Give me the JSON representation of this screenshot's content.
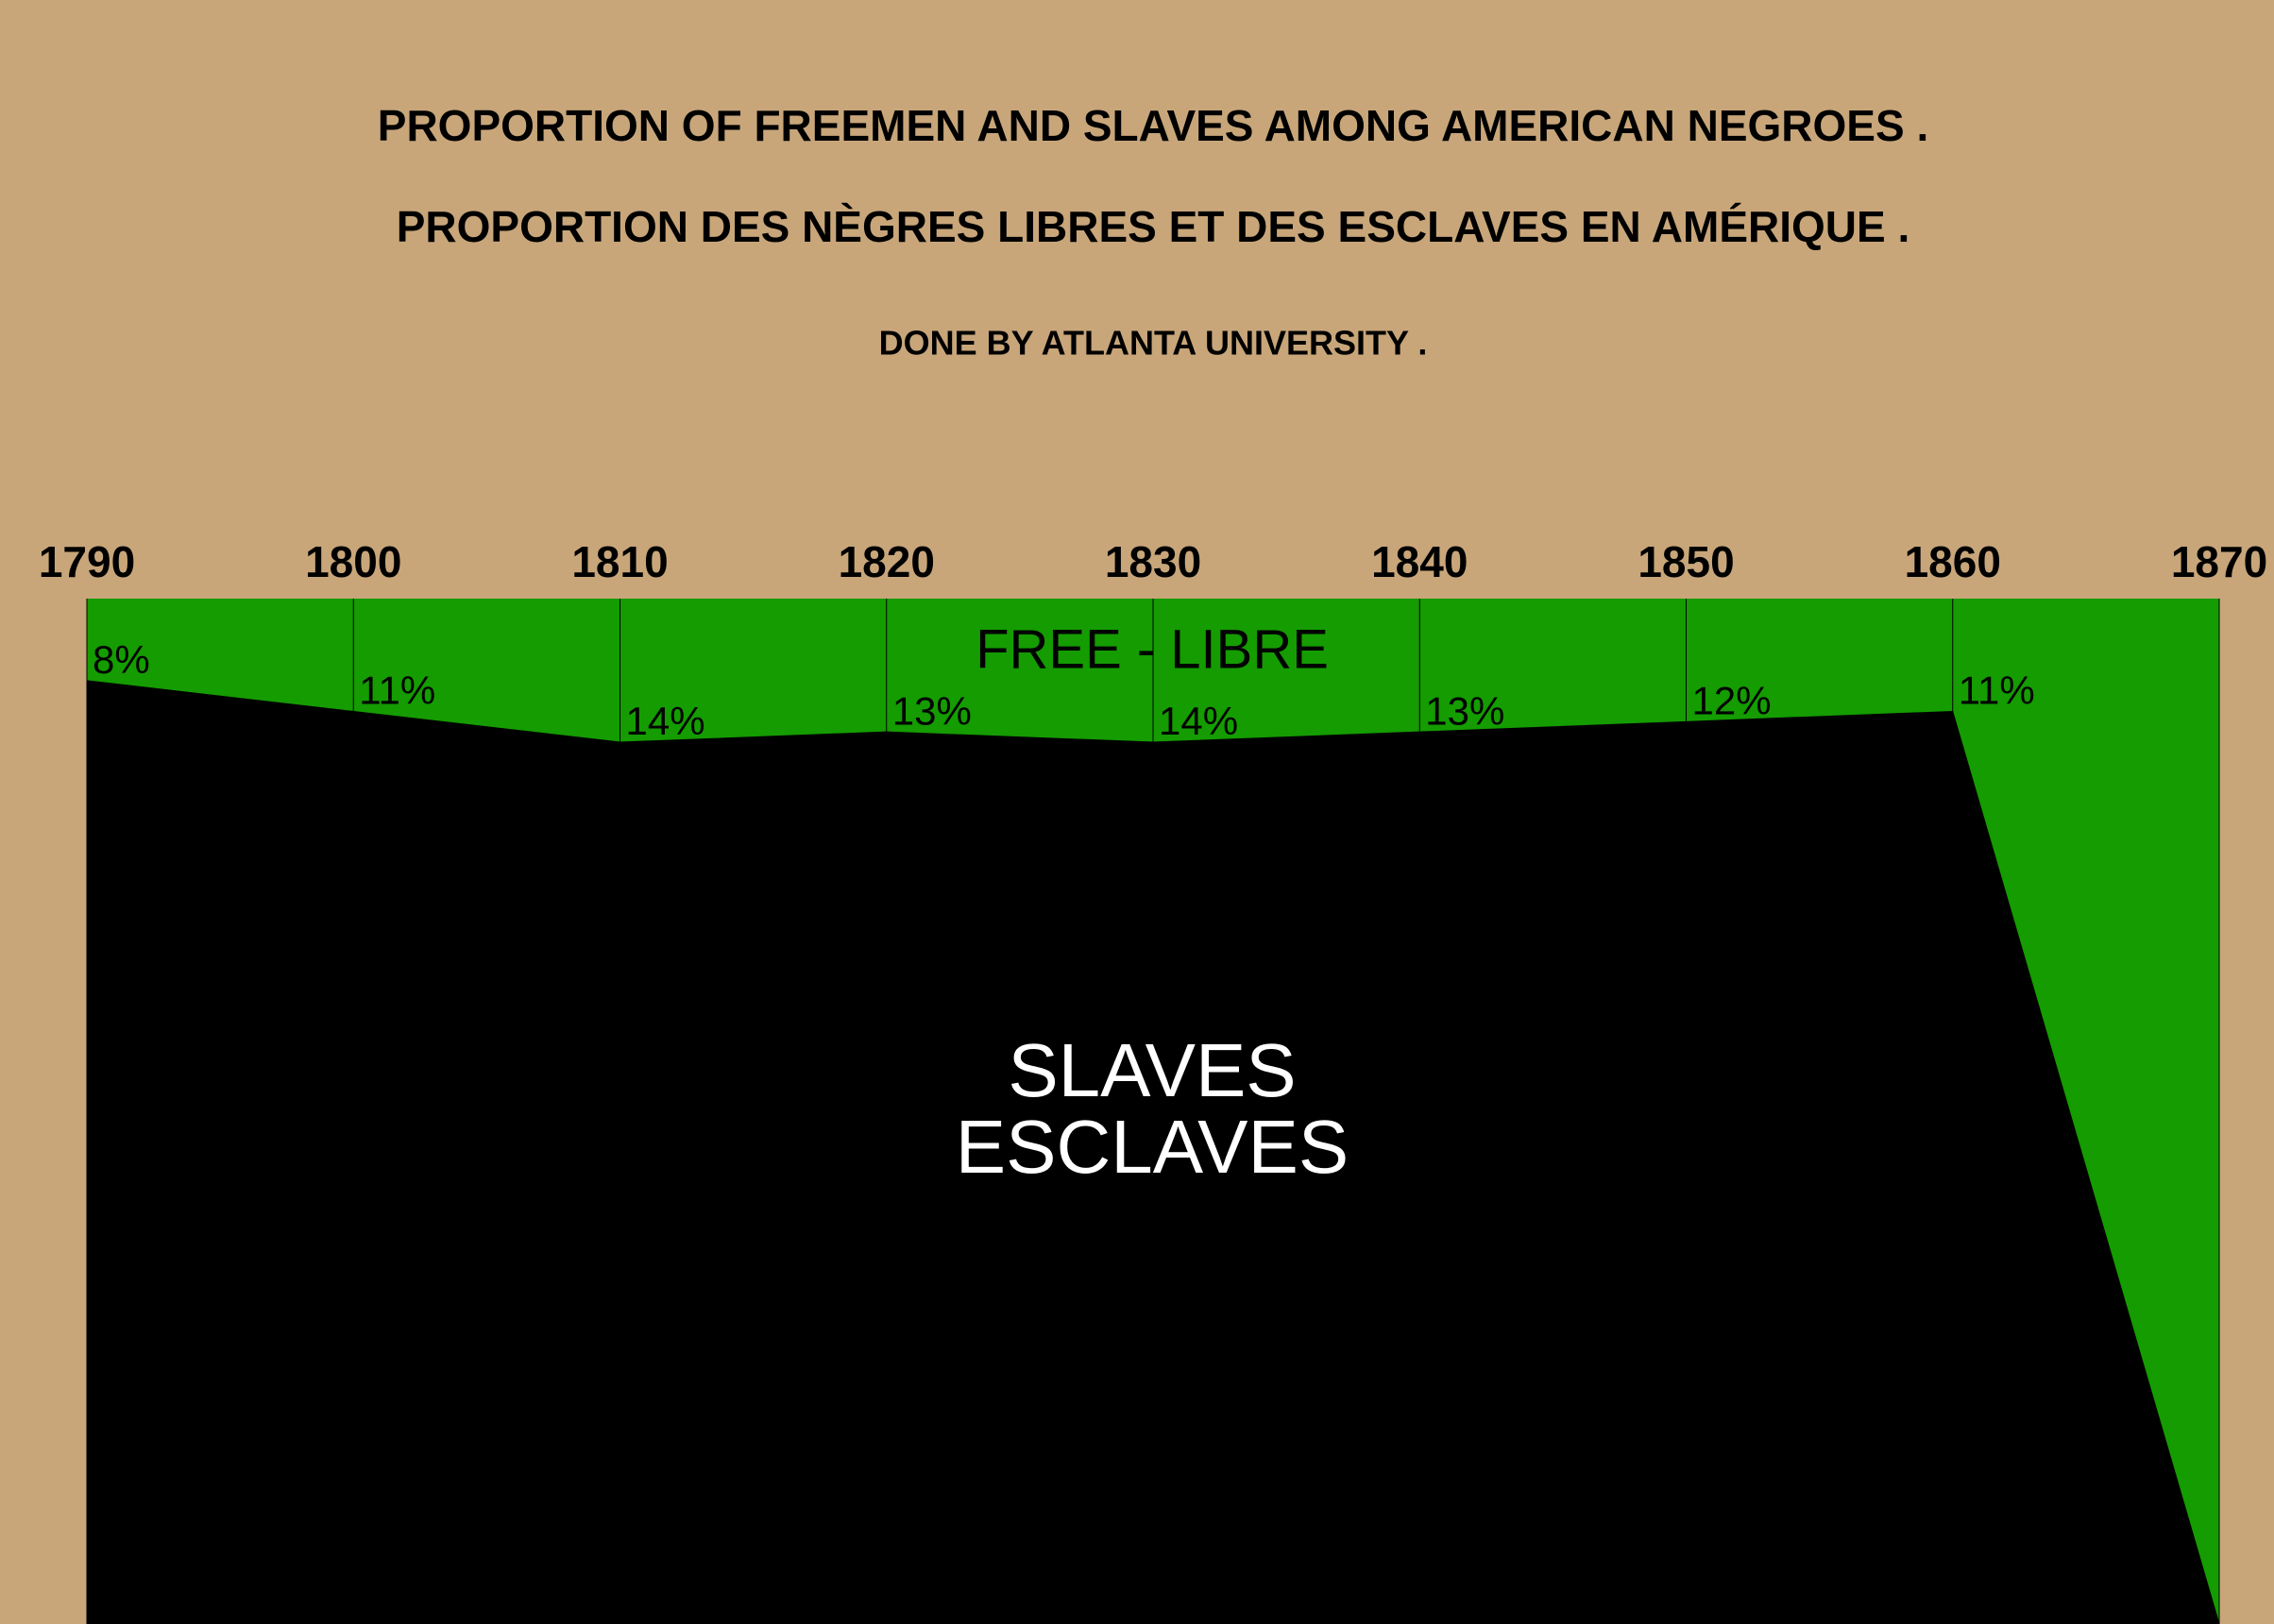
{
  "chart_data": {
    "type": "area",
    "title": "PROPORTION OF FREEMEN AND SLAVES AMONG AMERICAN NEGROES .",
    "subtitle": "PROPORTION DES NÈGRES LIBRES ET DES ESCLAVES EN AMÉRIQUE .",
    "credit": "DONE BY ATLANTA UNIVERSITY .",
    "x": [
      1790,
      1800,
      1810,
      1820,
      1830,
      1840,
      1850,
      1860,
      1870
    ],
    "xlim": [
      1790,
      1870
    ],
    "xticks": [
      1790,
      1800,
      1810,
      1820,
      1830,
      1840,
      1850,
      1860,
      1870
    ],
    "ylim": [
      0,
      100
    ],
    "series": [
      {
        "name": "FREE - LIBRE",
        "color": "#149c00",
        "values": [
          8,
          11,
          14,
          13,
          14,
          13,
          12,
          11,
          100
        ],
        "value_labels": [
          "8%",
          "11%",
          "14%",
          "13%",
          "14%",
          "13%",
          "12%",
          "11%",
          null
        ]
      }
    ],
    "remainder": {
      "labels": [
        "SLAVES",
        "ESCLAVES"
      ],
      "color": "#000000"
    },
    "background": "#c8a67a"
  }
}
